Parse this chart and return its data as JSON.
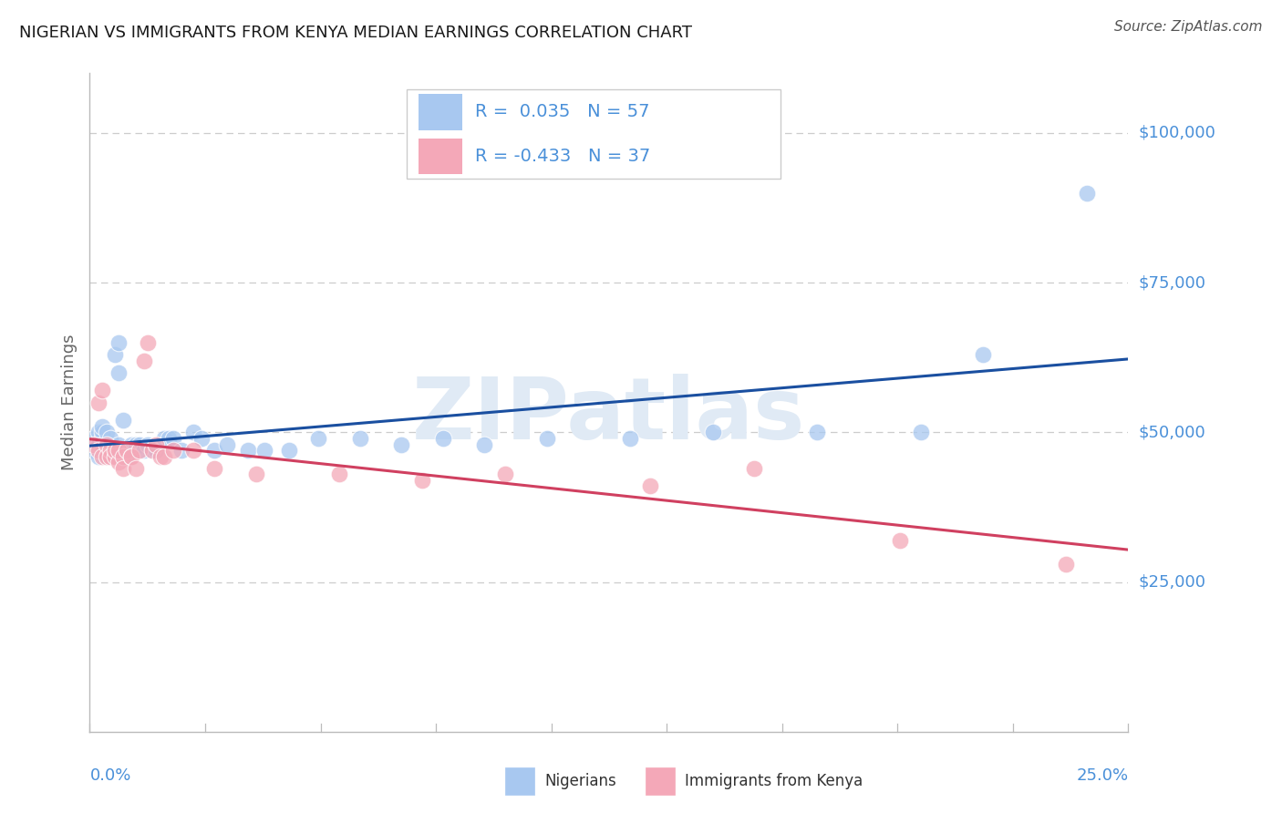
{
  "title": "NIGERIAN VS IMMIGRANTS FROM KENYA MEDIAN EARNINGS CORRELATION CHART",
  "source": "Source: ZipAtlas.com",
  "ylabel": "Median Earnings",
  "xlim": [
    0.0,
    0.25
  ],
  "ylim": [
    0,
    110000
  ],
  "yticks": [
    25000,
    50000,
    75000,
    100000
  ],
  "ytick_labels": [
    "$25,000",
    "$50,000",
    "$75,000",
    "$100,000"
  ],
  "watermark": "ZIPatlas",
  "blue_color": "#A8C8F0",
  "pink_color": "#F4A8B8",
  "blue_line_color": "#1A4FA0",
  "pink_line_color": "#D04060",
  "axis_color": "#4A90D9",
  "title_color": "#1A1A1A",
  "source_color": "#555555",
  "grid_color": "#CCCCCC",
  "legend_R1": "R =  0.035",
  "legend_N1": "N = 57",
  "legend_R2": "R = -0.433",
  "legend_N2": "N = 37",
  "legend_label1": "Nigerians",
  "legend_label2": "Immigrants from Kenya",
  "blue_x": [
    0.001,
    0.001,
    0.002,
    0.002,
    0.002,
    0.003,
    0.003,
    0.003,
    0.003,
    0.003,
    0.004,
    0.004,
    0.004,
    0.004,
    0.005,
    0.005,
    0.005,
    0.006,
    0.006,
    0.007,
    0.007,
    0.007,
    0.008,
    0.008,
    0.009,
    0.009,
    0.01,
    0.01,
    0.011,
    0.012,
    0.013,
    0.014,
    0.015,
    0.016,
    0.018,
    0.019,
    0.02,
    0.022,
    0.025,
    0.027,
    0.03,
    0.033,
    0.038,
    0.042,
    0.048,
    0.055,
    0.065,
    0.075,
    0.085,
    0.095,
    0.11,
    0.13,
    0.15,
    0.175,
    0.2,
    0.215,
    0.24
  ],
  "blue_y": [
    47000,
    49000,
    48000,
    50000,
    46000,
    49000,
    47000,
    50000,
    48000,
    51000,
    47000,
    46000,
    50000,
    48000,
    47000,
    46000,
    49000,
    63000,
    47000,
    65000,
    48000,
    60000,
    47000,
    52000,
    46000,
    47000,
    48000,
    47000,
    48000,
    48000,
    47000,
    48000,
    47000,
    47000,
    49000,
    49000,
    49000,
    47000,
    50000,
    49000,
    47000,
    48000,
    47000,
    47000,
    47000,
    49000,
    49000,
    48000,
    49000,
    48000,
    49000,
    49000,
    50000,
    50000,
    50000,
    63000,
    90000
  ],
  "pink_x": [
    0.001,
    0.002,
    0.002,
    0.003,
    0.003,
    0.004,
    0.004,
    0.005,
    0.005,
    0.006,
    0.006,
    0.007,
    0.007,
    0.008,
    0.008,
    0.009,
    0.01,
    0.01,
    0.011,
    0.012,
    0.013,
    0.014,
    0.015,
    0.016,
    0.017,
    0.018,
    0.02,
    0.025,
    0.03,
    0.04,
    0.06,
    0.08,
    0.1,
    0.135,
    0.16,
    0.195,
    0.235
  ],
  "pink_y": [
    48000,
    47000,
    55000,
    57000,
    46000,
    48000,
    46000,
    47000,
    46000,
    46000,
    47000,
    45000,
    47000,
    46000,
    44000,
    47000,
    46000,
    46000,
    44000,
    47000,
    62000,
    65000,
    47000,
    48000,
    46000,
    46000,
    47000,
    47000,
    44000,
    43000,
    43000,
    42000,
    43000,
    41000,
    44000,
    32000,
    28000
  ]
}
